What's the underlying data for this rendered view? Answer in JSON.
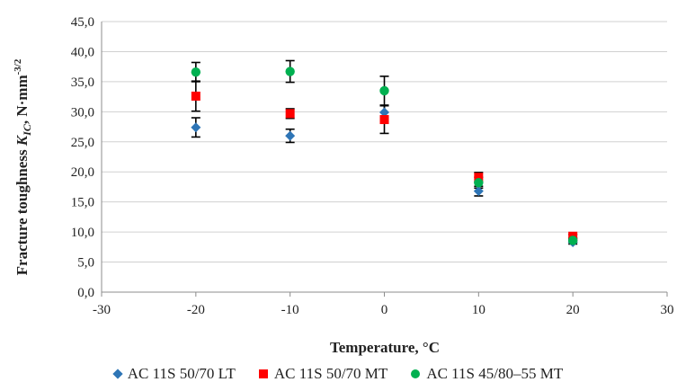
{
  "chart_data": {
    "type": "scatter",
    "xlabel": "Temperature, °C",
    "ylabel_parts": {
      "pre": "Fracture toughness ",
      "var": "K",
      "sub": "IC",
      "unit": ", N·mm",
      "sup": "-3/2"
    },
    "xlim": [
      -30,
      30
    ],
    "ylim": [
      0,
      45
    ],
    "x_ticks": [
      "-30",
      "-20",
      "-10",
      "0",
      "10",
      "20",
      "30"
    ],
    "y_ticks": [
      "0,0",
      "5,0",
      "10,0",
      "15,0",
      "20,0",
      "25,0",
      "30,0",
      "35,0",
      "40,0",
      "45,0"
    ],
    "grid": "horizontal",
    "legend_position": "bottom",
    "series": [
      {
        "name": "AC 11S 50/70 LT",
        "marker": "diamond",
        "color": "#2E75B6",
        "points": [
          {
            "x": -20,
            "y": 27.4,
            "err": 1.6
          },
          {
            "x": -10,
            "y": 26.0,
            "err": 1.1
          },
          {
            "x": 0,
            "y": 29.9,
            "err": 1.1
          },
          {
            "x": 10,
            "y": 16.8,
            "err": 0.8
          },
          {
            "x": 20,
            "y": 8.3,
            "err": 0.3
          }
        ]
      },
      {
        "name": "AC 11S 50/70 MT",
        "marker": "square",
        "color": "#FF0000",
        "points": [
          {
            "x": -20,
            "y": 32.6,
            "err": 2.5
          },
          {
            "x": -10,
            "y": 29.7,
            "err": 0.8
          },
          {
            "x": 0,
            "y": 28.7,
            "err": 2.3
          },
          {
            "x": 10,
            "y": 19.1,
            "err": 0.8
          },
          {
            "x": 20,
            "y": 9.3,
            "err": 0.3
          }
        ]
      },
      {
        "name": "AC 11S 45/80–55 MT",
        "marker": "circle",
        "color": "#00B050",
        "points": [
          {
            "x": -20,
            "y": 36.6,
            "err": 1.6
          },
          {
            "x": -10,
            "y": 36.7,
            "err": 1.8
          },
          {
            "x": 0,
            "y": 33.5,
            "err": 2.4
          },
          {
            "x": 10,
            "y": 18.2,
            "err": 0.9
          },
          {
            "x": 20,
            "y": 8.6,
            "err": 0.3
          }
        ]
      }
    ]
  }
}
